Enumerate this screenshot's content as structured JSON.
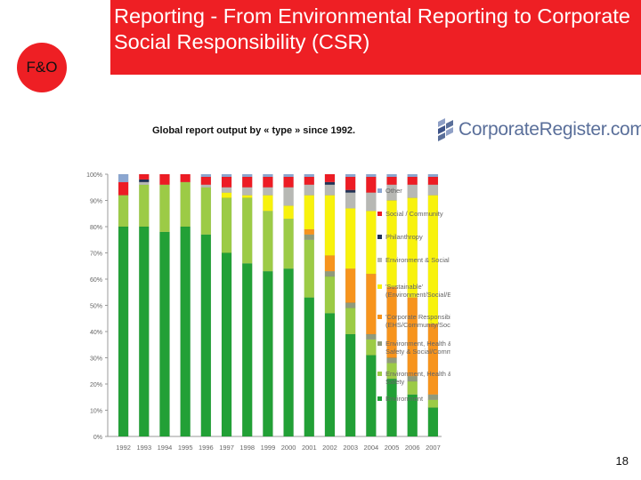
{
  "header": {
    "logo_text": "F&O",
    "title": "Reporting - From Environmental Reporting to Corporate Social Responsibility (CSR)"
  },
  "caption": "Global report output by « type » since 1992.",
  "brand": {
    "name": "CorporateRegister.com",
    "icon": "corporateregister-logo-icon"
  },
  "colors": {
    "title_bg": "#ee1f24",
    "brand_text": "#5a6f9a"
  },
  "page_number": "18",
  "chart_data": {
    "type": "bar",
    "stacked": true,
    "percent": true,
    "categories": [
      "1992",
      "1993",
      "1994",
      "1995",
      "1996",
      "1997",
      "1998",
      "1999",
      "2000",
      "2001",
      "2002",
      "2003",
      "2004",
      "2005",
      "2006",
      "2007"
    ],
    "ylim": [
      0,
      100
    ],
    "yticks": [
      "0%",
      "10%",
      "20%",
      "30%",
      "40%",
      "50%",
      "60%",
      "70%",
      "80%",
      "90%",
      "100%"
    ],
    "grid": false,
    "legend_position": "right",
    "series": [
      {
        "name": "Environment",
        "color": "#22a036",
        "values": [
          80,
          80,
          78,
          80,
          77,
          70,
          66,
          63,
          64,
          53,
          47,
          39,
          31,
          22,
          16,
          11
        ]
      },
      {
        "name": "Environment, Health & Safety",
        "color": "#9ccb46",
        "values": [
          12,
          16,
          18,
          17,
          18,
          21,
          25,
          23,
          19,
          22,
          14,
          10,
          6,
          6,
          5,
          3
        ]
      },
      {
        "name": "Environment, Health & Safety & Social/Community",
        "color": "#909a7b",
        "values": [
          0,
          0,
          0,
          0,
          0,
          0,
          0,
          0,
          0,
          2,
          2,
          2,
          2,
          2,
          2,
          2
        ]
      },
      {
        "name": "'Corporate Responsibility' (EHS/Community/Social)",
        "color": "#f7941d",
        "values": [
          0,
          0,
          0,
          0,
          0,
          0,
          0,
          0,
          0,
          2,
          6,
          13,
          23,
          27,
          30,
          27
        ]
      },
      {
        "name": "'Sustainable' (Environment/Social/Economic)",
        "color": "#f8f20c",
        "values": [
          0,
          0,
          0,
          0,
          0,
          2,
          1,
          6,
          5,
          13,
          23,
          23,
          24,
          33,
          38,
          49
        ]
      },
      {
        "name": "Environment & Social",
        "color": "#b7b8b4",
        "values": [
          0,
          1,
          0,
          0,
          1,
          2,
          3,
          3,
          7,
          4,
          4,
          6,
          7,
          6,
          5,
          4
        ]
      },
      {
        "name": "Philanthropy",
        "color": "#223356",
        "values": [
          0,
          1,
          0,
          0,
          0,
          0,
          0,
          0,
          0,
          0,
          1,
          1,
          0,
          0,
          0,
          0
        ]
      },
      {
        "name": "Social / Community",
        "color": "#ed1c24",
        "values": [
          5,
          2,
          4,
          3,
          3,
          4,
          4,
          4,
          4,
          3,
          3,
          5,
          6,
          3,
          3,
          3
        ]
      },
      {
        "name": "Other",
        "color": "#8ba6d0",
        "values": [
          3,
          0,
          0,
          0,
          1,
          1,
          1,
          1,
          1,
          1,
          0,
          1,
          1,
          1,
          1,
          1
        ]
      }
    ]
  }
}
